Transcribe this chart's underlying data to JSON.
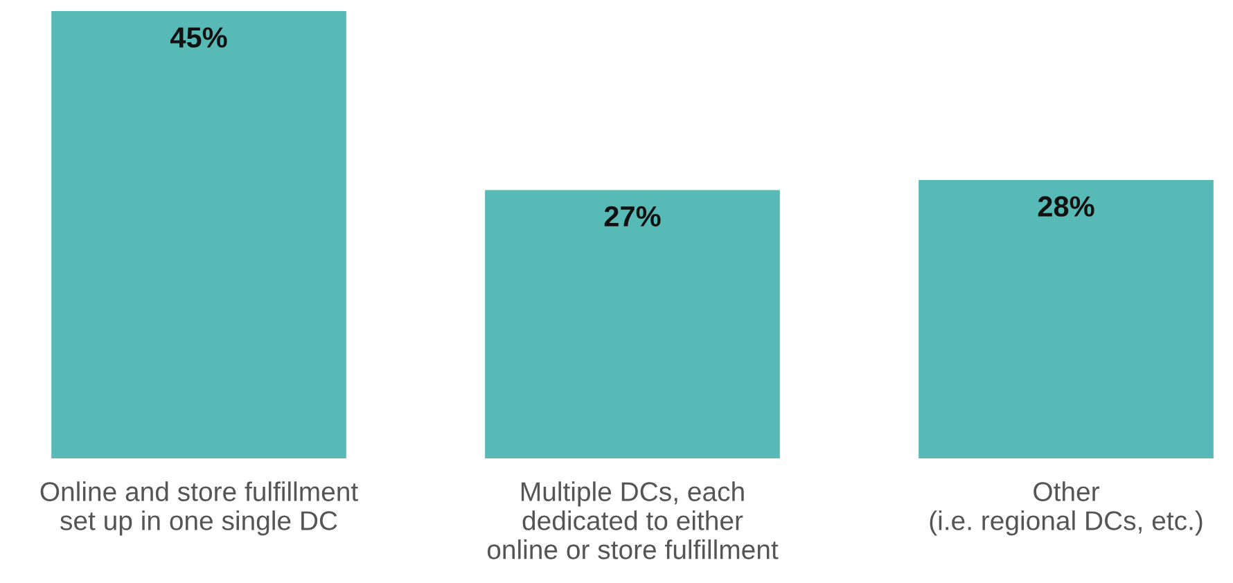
{
  "chart_data": {
    "type": "bar",
    "categories": [
      "Online and store fulfillment\nset up in one single DC",
      "Multiple DCs, each\ndedicated to either\nonline or store fulfillment",
      "Other\n(i.e. regional DCs, etc.)"
    ],
    "values": [
      45,
      27,
      28
    ],
    "value_labels": [
      "45%",
      "27%",
      "28%"
    ],
    "color": "#58bab6",
    "grid": false,
    "legend": false
  }
}
